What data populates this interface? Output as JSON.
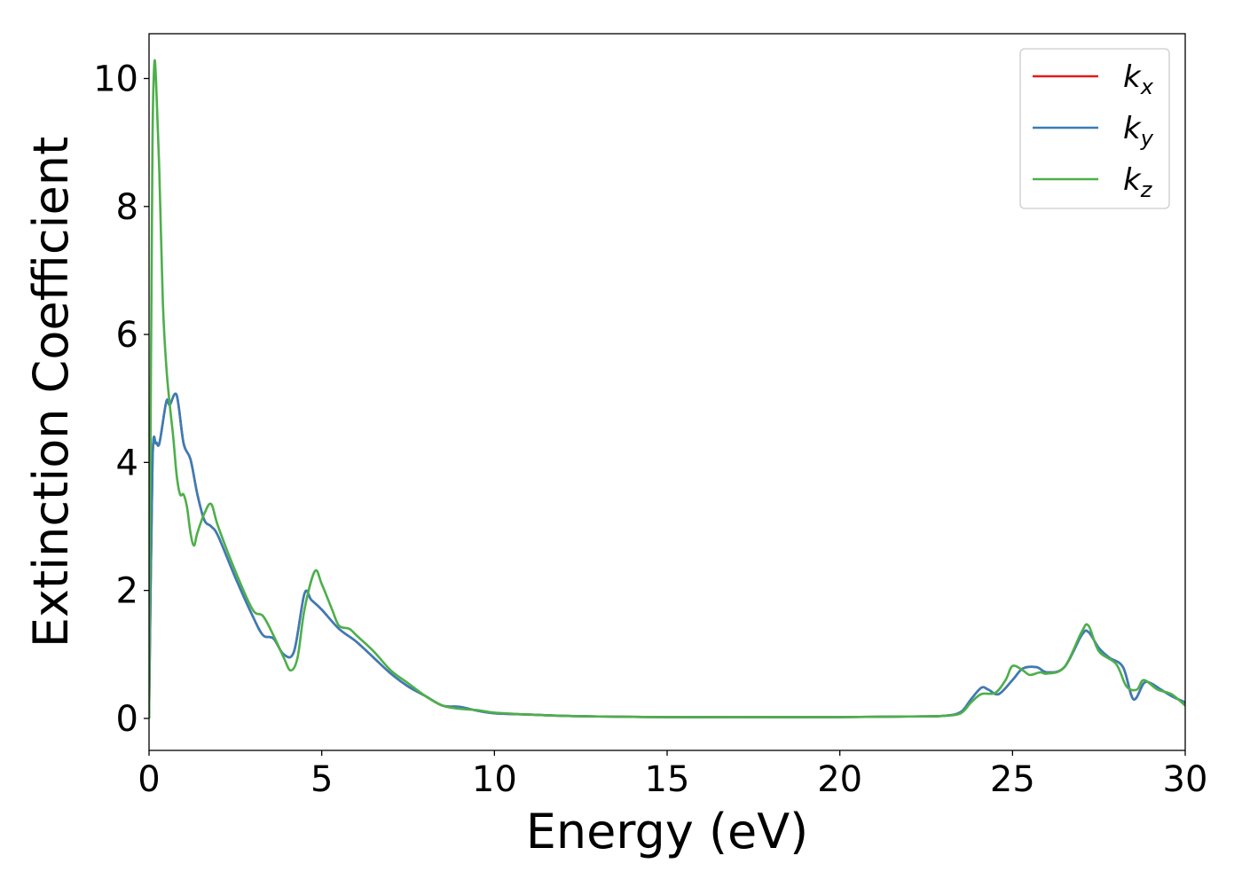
{
  "chart_data": {
    "type": "line",
    "title": "",
    "xlabel": "Energy (eV)",
    "ylabel": "Extinction Coefficient",
    "xlim": [
      0,
      30
    ],
    "ylim": [
      -0.5,
      10.7
    ],
    "xticks": [
      0,
      5,
      10,
      15,
      20,
      25,
      30
    ],
    "yticks": [
      0,
      2,
      4,
      6,
      8,
      10
    ],
    "xtick_labels": [
      "0",
      "5",
      "10",
      "15",
      "20",
      "25",
      "30"
    ],
    "ytick_labels": [
      "0",
      "2",
      "4",
      "6",
      "8",
      "10"
    ],
    "grid": false,
    "legend_position": "top-right",
    "series": [
      {
        "name": "k",
        "subscript": "x",
        "color": "#e41a1c",
        "x": [
          0,
          0.1,
          0.2,
          0.3,
          0.5,
          0.6,
          0.8,
          1.0,
          1.2,
          1.4,
          1.6,
          1.8,
          2.0,
          2.5,
          3.0,
          3.3,
          3.6,
          3.9,
          4.2,
          4.5,
          4.7,
          5.0,
          5.5,
          6.0,
          6.5,
          7.0,
          7.5,
          8.0,
          8.5,
          9.0,
          9.5,
          10.0,
          11.0,
          12.0,
          13.0,
          15.0,
          17.0,
          20.0,
          22.0,
          23.0,
          23.5,
          23.8,
          24.1,
          24.3,
          24.6,
          25.0,
          25.3,
          25.7,
          26.0,
          26.5,
          27.0,
          27.2,
          27.5,
          27.8,
          28.2,
          28.5,
          28.8,
          29.0,
          29.3,
          29.6,
          30.0
        ],
        "y": [
          0,
          4.0,
          4.3,
          4.3,
          4.95,
          4.9,
          5.05,
          4.3,
          4.05,
          3.5,
          3.1,
          3.0,
          2.85,
          2.2,
          1.6,
          1.3,
          1.25,
          1.0,
          1.05,
          1.95,
          1.85,
          1.7,
          1.4,
          1.2,
          0.95,
          0.7,
          0.5,
          0.35,
          0.2,
          0.18,
          0.12,
          0.08,
          0.06,
          0.04,
          0.03,
          0.02,
          0.02,
          0.02,
          0.03,
          0.04,
          0.1,
          0.3,
          0.48,
          0.45,
          0.38,
          0.6,
          0.78,
          0.8,
          0.72,
          0.8,
          1.3,
          1.35,
          1.1,
          0.95,
          0.8,
          0.3,
          0.55,
          0.55,
          0.45,
          0.35,
          0.25
        ]
      },
      {
        "name": "k",
        "subscript": "y",
        "color": "#377eb8",
        "x": [
          0,
          0.1,
          0.2,
          0.3,
          0.5,
          0.6,
          0.8,
          1.0,
          1.2,
          1.4,
          1.6,
          1.8,
          2.0,
          2.5,
          3.0,
          3.3,
          3.6,
          3.9,
          4.2,
          4.5,
          4.7,
          5.0,
          5.5,
          6.0,
          6.5,
          7.0,
          7.5,
          8.0,
          8.5,
          9.0,
          9.5,
          10.0,
          11.0,
          12.0,
          13.0,
          15.0,
          17.0,
          20.0,
          22.0,
          23.0,
          23.5,
          23.8,
          24.1,
          24.3,
          24.6,
          25.0,
          25.3,
          25.7,
          26.0,
          26.5,
          27.0,
          27.2,
          27.5,
          27.8,
          28.2,
          28.5,
          28.8,
          29.0,
          29.3,
          29.6,
          30.0
        ],
        "y": [
          0,
          4.0,
          4.3,
          4.3,
          4.95,
          4.9,
          5.05,
          4.3,
          4.05,
          3.5,
          3.1,
          3.0,
          2.85,
          2.2,
          1.6,
          1.3,
          1.25,
          1.0,
          1.05,
          1.95,
          1.85,
          1.7,
          1.4,
          1.2,
          0.95,
          0.7,
          0.5,
          0.35,
          0.2,
          0.18,
          0.12,
          0.08,
          0.06,
          0.04,
          0.03,
          0.02,
          0.02,
          0.02,
          0.03,
          0.04,
          0.1,
          0.3,
          0.48,
          0.45,
          0.38,
          0.6,
          0.78,
          0.8,
          0.72,
          0.8,
          1.3,
          1.35,
          1.1,
          0.95,
          0.8,
          0.3,
          0.55,
          0.55,
          0.45,
          0.35,
          0.25
        ]
      },
      {
        "name": "k",
        "subscript": "z",
        "color": "#4daf4a",
        "x": [
          0,
          0.05,
          0.1,
          0.15,
          0.2,
          0.3,
          0.4,
          0.5,
          0.6,
          0.7,
          0.8,
          0.9,
          1.0,
          1.1,
          1.2,
          1.3,
          1.4,
          1.6,
          1.8,
          2.0,
          2.5,
          3.0,
          3.3,
          3.6,
          3.9,
          4.1,
          4.3,
          4.5,
          4.8,
          5.0,
          5.3,
          5.5,
          5.8,
          6.0,
          6.5,
          7.0,
          7.5,
          8.0,
          8.5,
          9.0,
          9.5,
          10.0,
          11.0,
          12.0,
          13.0,
          15.0,
          17.0,
          20.0,
          22.0,
          23.0,
          23.5,
          23.8,
          24.1,
          24.5,
          24.8,
          25.0,
          25.3,
          25.5,
          25.8,
          26.0,
          26.5,
          27.0,
          27.2,
          27.5,
          28.0,
          28.3,
          28.6,
          28.8,
          29.2,
          29.6,
          30.0
        ],
        "y": [
          0,
          5.0,
          9.0,
          10.2,
          10.0,
          8.5,
          6.5,
          5.5,
          4.9,
          4.4,
          3.8,
          3.5,
          3.5,
          3.3,
          2.9,
          2.7,
          2.9,
          3.2,
          3.35,
          3.0,
          2.3,
          1.7,
          1.6,
          1.3,
          0.95,
          0.75,
          0.95,
          1.7,
          2.3,
          2.1,
          1.7,
          1.45,
          1.4,
          1.3,
          1.05,
          0.75,
          0.55,
          0.35,
          0.2,
          0.15,
          0.13,
          0.09,
          0.06,
          0.04,
          0.03,
          0.02,
          0.02,
          0.02,
          0.03,
          0.04,
          0.08,
          0.25,
          0.38,
          0.4,
          0.6,
          0.82,
          0.75,
          0.68,
          0.72,
          0.7,
          0.8,
          1.35,
          1.45,
          1.05,
          0.85,
          0.5,
          0.45,
          0.6,
          0.45,
          0.38,
          0.2
        ]
      }
    ]
  }
}
